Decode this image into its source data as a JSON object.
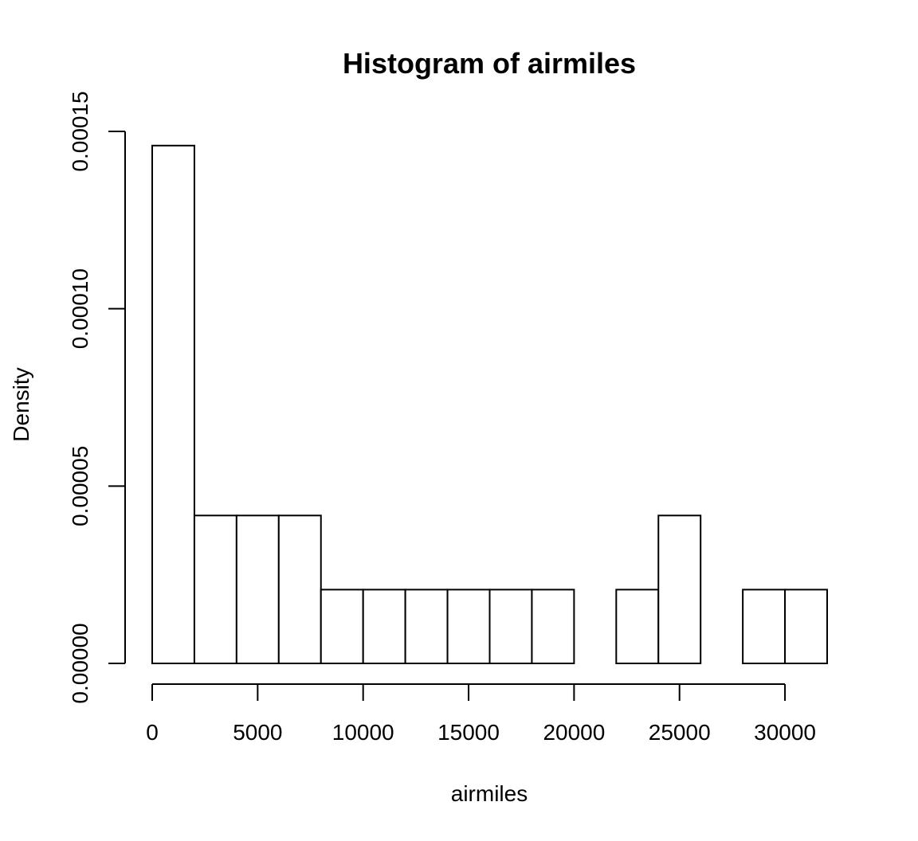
{
  "chart_data": {
    "type": "bar",
    "title": "Histogram of airmiles",
    "xlabel": "airmiles",
    "ylabel": "Density",
    "bins": [
      {
        "x0": 0,
        "x1": 2000,
        "density": 0.000146
      },
      {
        "x0": 2000,
        "x1": 4000,
        "density": 4.17e-05
      },
      {
        "x0": 4000,
        "x1": 6000,
        "density": 4.17e-05
      },
      {
        "x0": 6000,
        "x1": 8000,
        "density": 4.17e-05
      },
      {
        "x0": 8000,
        "x1": 10000,
        "density": 2.08e-05
      },
      {
        "x0": 10000,
        "x1": 12000,
        "density": 2.08e-05
      },
      {
        "x0": 12000,
        "x1": 14000,
        "density": 2.08e-05
      },
      {
        "x0": 14000,
        "x1": 16000,
        "density": 2.08e-05
      },
      {
        "x0": 16000,
        "x1": 18000,
        "density": 2.08e-05
      },
      {
        "x0": 18000,
        "x1": 20000,
        "density": 2.08e-05
      },
      {
        "x0": 20000,
        "x1": 22000,
        "density": 0
      },
      {
        "x0": 22000,
        "x1": 24000,
        "density": 2.08e-05
      },
      {
        "x0": 24000,
        "x1": 26000,
        "density": 4.17e-05
      },
      {
        "x0": 26000,
        "x1": 28000,
        "density": 0
      },
      {
        "x0": 28000,
        "x1": 30000,
        "density": 2.08e-05
      },
      {
        "x0": 30000,
        "x1": 32000,
        "density": 2.08e-05
      }
    ],
    "x_ticks": [
      0,
      5000,
      10000,
      15000,
      20000,
      25000,
      30000
    ],
    "x_tick_labels": [
      "0",
      "5000",
      "10000",
      "15000",
      "20000",
      "25000",
      "30000"
    ],
    "y_ticks": [
      0,
      5e-05,
      0.0001,
      0.00015
    ],
    "y_tick_labels": [
      "0.00000",
      "0.00005",
      "0.00010",
      "0.00015"
    ],
    "xlim": [
      0,
      32000
    ],
    "ylim": [
      0,
      0.00015
    ],
    "grid": false,
    "legend": "none"
  }
}
